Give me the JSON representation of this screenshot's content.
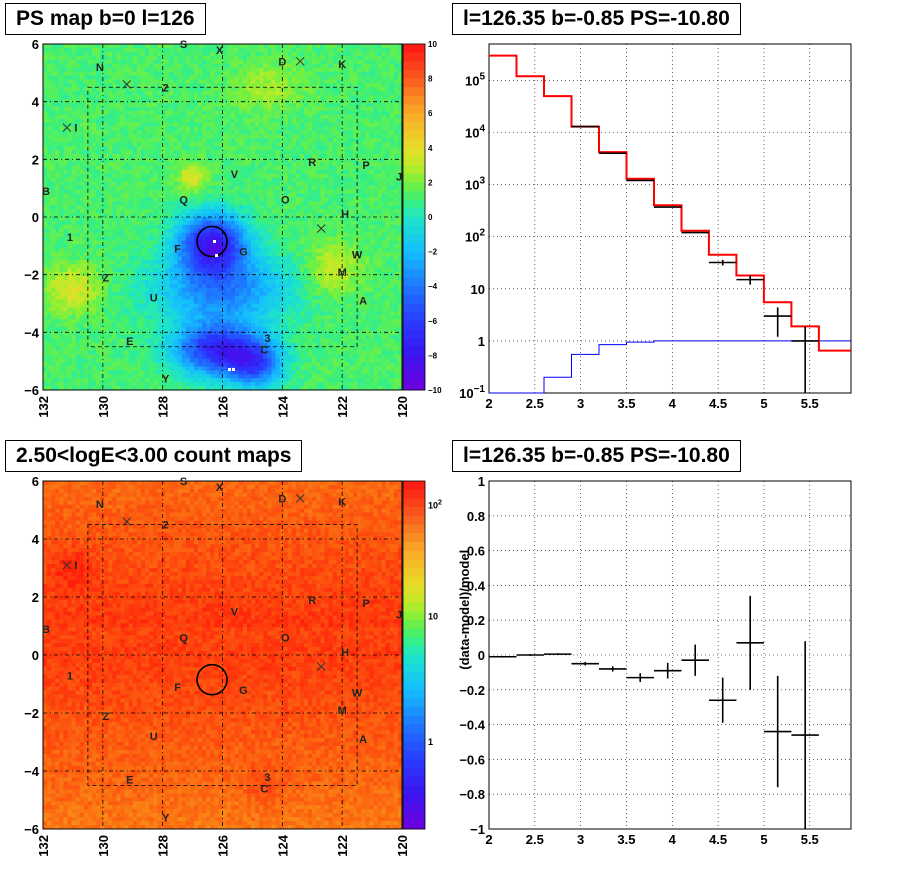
{
  "panels": {
    "top_left_title": "PS map b=0 l=126",
    "top_right_title": "l=126.35 b=-0.85 PS=-10.80",
    "bottom_left_title": "2.50<logE<3.00 count maps",
    "bottom_right_title": "l=126.35 b=-0.85 PS=-10.80"
  },
  "colors": {
    "model_line": "#ff0000",
    "component_line": "#0000ff",
    "data_points": "#000000"
  },
  "chart_data": [
    {
      "type": "heatmap",
      "title": "PS map b=0 l=126",
      "x_ticks": [
        "132",
        "130",
        "128",
        "126",
        "124",
        "122",
        "120"
      ],
      "y_ticks": [
        "6",
        "4",
        "2",
        "0",
        "−2",
        "−4",
        "−6"
      ],
      "xlim": [
        132,
        120
      ],
      "ylim": [
        -6,
        6
      ],
      "grid": true,
      "colorbar": {
        "scale": "linear",
        "range": [
          -10,
          10
        ],
        "ticks": [
          "10",
          "8",
          "6",
          "4",
          "2",
          "0",
          "−2",
          "−4",
          "−6",
          "−8",
          "−10"
        ]
      },
      "source_labels": [
        {
          "label": "N",
          "l": 130.1,
          "b": 5.2
        },
        {
          "label": "S",
          "l": 127.3,
          "b": 6.0
        },
        {
          "label": "X",
          "l": 126.1,
          "b": 5.8
        },
        {
          "label": "D",
          "l": 124.0,
          "b": 5.4
        },
        {
          "label": "K",
          "l": 122.0,
          "b": 5.3
        },
        {
          "label": "2",
          "l": 127.9,
          "b": 4.5
        },
        {
          "label": "I",
          "l": 130.9,
          "b": 3.1
        },
        {
          "label": "B",
          "l": 131.9,
          "b": 0.9
        },
        {
          "label": "J",
          "l": 120.1,
          "b": 1.4
        },
        {
          "label": "R",
          "l": 123.0,
          "b": 1.9
        },
        {
          "label": "P",
          "l": 121.2,
          "b": 1.8
        },
        {
          "label": "V",
          "l": 125.6,
          "b": 1.5
        },
        {
          "label": "Q",
          "l": 127.3,
          "b": 0.6
        },
        {
          "label": "O",
          "l": 123.9,
          "b": 0.6
        },
        {
          "label": "H",
          "l": 121.9,
          "b": 0.1
        },
        {
          "label": "1",
          "l": 131.1,
          "b": -0.7
        },
        {
          "label": "F",
          "l": 127.5,
          "b": -1.1
        },
        {
          "label": "G",
          "l": 125.3,
          "b": -1.2
        },
        {
          "label": "W",
          "l": 121.5,
          "b": -1.3
        },
        {
          "label": "M",
          "l": 122.0,
          "b": -1.9
        },
        {
          "label": "Z",
          "l": 129.9,
          "b": -2.1
        },
        {
          "label": "U",
          "l": 128.3,
          "b": -2.8
        },
        {
          "label": "A",
          "l": 121.3,
          "b": -2.9
        },
        {
          "label": "E",
          "l": 129.1,
          "b": -4.3
        },
        {
          "label": "3",
          "l": 124.5,
          "b": -4.2
        },
        {
          "label": "C",
          "l": 124.6,
          "b": -4.6
        },
        {
          "label": "Y",
          "l": 127.9,
          "b": -5.6
        }
      ],
      "crosses": [
        {
          "l": 129.2,
          "b": 4.6
        },
        {
          "l": 123.4,
          "b": 5.4
        },
        {
          "l": 131.2,
          "b": 3.1
        },
        {
          "l": 122.7,
          "b": -0.4
        }
      ],
      "circle": {
        "l": 126.35,
        "b": -0.85
      }
    },
    {
      "type": "line",
      "title": "l=126.35 b=-0.85 PS=-10.80",
      "x_ticks": [
        "2",
        "2.5",
        "3",
        "3.5",
        "4",
        "4.5",
        "5",
        "5.5"
      ],
      "y_ticks": [
        "10^5",
        "10^4",
        "10^3",
        "10^2",
        "10",
        "1",
        "10^-1"
      ],
      "xlim": [
        2,
        5.95
      ],
      "ylim": [
        0.1,
        500000
      ],
      "y_scale": "log",
      "grid": true,
      "bin_edges": [
        2,
        2.3,
        2.6,
        2.9,
        3.2,
        3.5,
        3.8,
        4.1,
        4.4,
        4.7,
        5.0,
        5.3,
        5.6,
        5.95
      ],
      "series": [
        {
          "values": [
            300000,
            120000,
            50000,
            13000,
            4200,
            1300,
            400,
            130,
            45,
            18,
            5.5,
            1.9,
            0.65
          ]
        },
        {
          "values": [
            0.1,
            0.1,
            0.2,
            0.55,
            0.85,
            0.95,
            1.0,
            1.0,
            1.0,
            1.0,
            1.0,
            1.0,
            1.0
          ]
        },
        {
          "points": [
            {
              "x": 3.05,
              "y": 13000,
              "xerr": 0.15
            },
            {
              "x": 3.35,
              "y": 4000,
              "xerr": 0.15
            },
            {
              "x": 3.65,
              "y": 1200,
              "xerr": 0.15
            },
            {
              "x": 3.95,
              "y": 370,
              "xerr": 0.15
            },
            {
              "x": 4.25,
              "y": 120,
              "xerr": 0.15
            },
            {
              "x": 4.55,
              "y": 32,
              "xerr": 0.15,
              "yerr_lo": 4,
              "yerr_hi": 4
            },
            {
              "x": 4.85,
              "y": 15,
              "xerr": 0.15,
              "yerr_lo": 3,
              "yerr_hi": 3
            },
            {
              "x": 5.15,
              "y": 3,
              "xerr": 0.15,
              "yerr_lo": 1.8,
              "yerr_hi": 1.4
            },
            {
              "x": 5.45,
              "y": 1,
              "xerr": 0.15,
              "yerr_lo": 0.9,
              "yerr_hi": 0.9
            }
          ]
        }
      ]
    },
    {
      "type": "heatmap",
      "title": "2.50<logE<3.00 count maps",
      "x_ticks": [
        "132",
        "130",
        "128",
        "126",
        "124",
        "122",
        "120"
      ],
      "y_ticks": [
        "6",
        "4",
        "2",
        "0",
        "−2",
        "−4",
        "−6"
      ],
      "xlim": [
        132,
        120
      ],
      "ylim": [
        -6,
        6
      ],
      "grid": true,
      "colorbar": {
        "scale": "log",
        "ticks": [
          "10^2",
          "10",
          "1"
        ]
      },
      "source_labels": "same as PS map",
      "circle": {
        "l": 126.35,
        "b": -0.85
      }
    },
    {
      "type": "scatter",
      "title": "l=126.35 b=-0.85 PS=-10.80",
      "ylabel": "(data-model)/model",
      "x_ticks": [
        "2",
        "2.5",
        "3",
        "3.5",
        "4",
        "4.5",
        "5",
        "5.5"
      ],
      "y_ticks": [
        "1",
        "0.8",
        "0.6",
        "0.4",
        "0.2",
        "0",
        "−0.2",
        "−0.4",
        "−0.6",
        "−0.8",
        "−1"
      ],
      "xlim": [
        2,
        5.95
      ],
      "ylim": [
        -1,
        1
      ],
      "grid": true,
      "points": [
        {
          "x": 2.15,
          "y": -0.01,
          "xerr": 0.15,
          "yerr": 0.005
        },
        {
          "x": 2.45,
          "y": 0.0,
          "xerr": 0.15,
          "yerr": 0.005
        },
        {
          "x": 2.75,
          "y": 0.005,
          "xerr": 0.15,
          "yerr": 0.005
        },
        {
          "x": 3.05,
          "y": -0.05,
          "xerr": 0.15,
          "yerr": 0.01
        },
        {
          "x": 3.35,
          "y": -0.08,
          "xerr": 0.15,
          "yerr": 0.015
        },
        {
          "x": 3.65,
          "y": -0.13,
          "xerr": 0.15,
          "yerr": 0.025
        },
        {
          "x": 3.95,
          "y": -0.09,
          "xerr": 0.15,
          "yerr": 0.045
        },
        {
          "x": 4.25,
          "y": -0.03,
          "xerr": 0.15,
          "yerr": 0.09
        },
        {
          "x": 4.55,
          "y": -0.26,
          "xerr": 0.15,
          "yerr": 0.13
        },
        {
          "x": 4.85,
          "y": 0.07,
          "xerr": 0.15,
          "yerr": 0.27
        },
        {
          "x": 5.15,
          "y": -0.44,
          "xerr": 0.15,
          "yerr": 0.32
        },
        {
          "x": 5.45,
          "y": -0.46,
          "xerr": 0.15,
          "yerr": 0.54
        }
      ]
    }
  ]
}
